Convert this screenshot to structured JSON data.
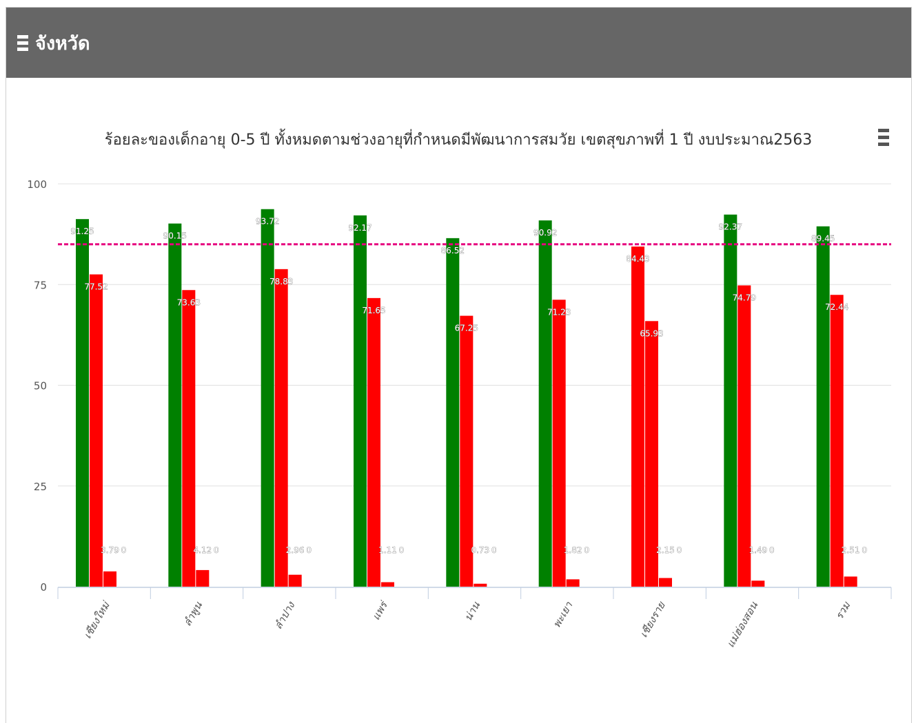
{
  "header": {
    "title": "จังหวัด",
    "menu_icon": "hamburger-icon"
  },
  "chart_menu_icon": "hamburger-icon",
  "colors": {
    "header_bg": "#666666",
    "series_green": "#008000",
    "series_red": "#ff0000",
    "target_line": "#e6007e",
    "grid": "#e0e0e0"
  },
  "chart_data": {
    "type": "bar",
    "title": "ร้อยละของเด็กอายุ 0-5 ปี ทั้งหมดตามช่วงอายุที่กำหนดมีพัฒนาการสมวัย เขตสุขภาพที่ 1 ปี งบประมาณ2563",
    "xlabel": "",
    "ylabel": "",
    "ylim": [
      0,
      100
    ],
    "yticks": [
      0,
      25,
      50,
      75,
      100
    ],
    "grid": true,
    "legend": "none",
    "categories": [
      "เชียงใหม่",
      "ลำพูน",
      "ลำปาง",
      "แพร่",
      "น่าน",
      "พะเยา",
      "เชียงราย",
      "แม่ฮ่องสอน",
      "รวม"
    ],
    "target_line": 85,
    "series": [
      {
        "values": [
          91.25,
          90.15,
          93.72,
          92.17,
          86.52,
          90.92,
          84.43,
          92.37,
          89.45
        ],
        "colors": [
          "#008000",
          "#008000",
          "#008000",
          "#008000",
          "#008000",
          "#008000",
          "#ff0000",
          "#008000",
          "#008000"
        ]
      },
      {
        "values": [
          77.52,
          73.63,
          78.83,
          71.65,
          67.25,
          71.23,
          65.93,
          74.79,
          72.44
        ],
        "colors": [
          "#ff0000",
          "#ff0000",
          "#ff0000",
          "#ff0000",
          "#ff0000",
          "#ff0000",
          "#ff0000",
          "#ff0000",
          "#ff0000"
        ]
      },
      {
        "values": [
          3.79,
          4.12,
          2.96,
          1.11,
          0.73,
          1.82,
          2.15,
          1.49,
          2.51
        ],
        "colors": [
          "#ff0000",
          "#ff0000",
          "#ff0000",
          "#ff0000",
          "#ff0000",
          "#ff0000",
          "#ff0000",
          "#ff0000",
          "#ff0000"
        ]
      },
      {
        "values": [
          0,
          0,
          0,
          0,
          0,
          0,
          0,
          0,
          0
        ],
        "colors": [
          "#ff0000",
          "#ff0000",
          "#ff0000",
          "#ff0000",
          "#ff0000",
          "#ff0000",
          "#ff0000",
          "#ff0000",
          "#ff0000"
        ]
      }
    ]
  }
}
